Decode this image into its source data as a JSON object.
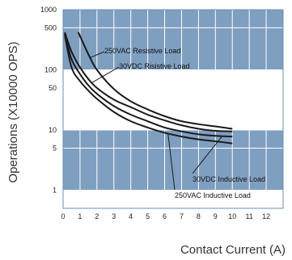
{
  "chart_data": {
    "type": "line",
    "xlabel": "Contact Current (A)",
    "ylabel": "Operations (X10000 OPS)",
    "y_scale": "log",
    "xlim": [
      0,
      13
    ],
    "ylim": [
      0.5,
      1000
    ],
    "x_ticks": [
      0,
      1,
      2,
      3,
      4,
      5,
      6,
      7,
      8,
      9,
      10,
      11,
      12
    ],
    "y_ticks": [
      1,
      5,
      10,
      50,
      100,
      500,
      1000
    ],
    "grid": true,
    "colors": {
      "band_dark": "#7f9fc0",
      "band_light": "#ffffff",
      "line": "#1a1a1a"
    },
    "series": [
      {
        "name": "250VAC Resistive Load",
        "x": [
          0.9,
          1.5,
          2,
          3,
          4,
          5,
          6,
          7,
          8,
          9,
          10
        ],
        "y": [
          420,
          180,
          100,
          48,
          30,
          22,
          17,
          14,
          12.5,
          11.5,
          10.5
        ]
      },
      {
        "name": "30VDC Risistive Load",
        "x": [
          0.1,
          0.5,
          1,
          1.5,
          2,
          3,
          4,
          5,
          6,
          7,
          8,
          9,
          10
        ],
        "y": [
          420,
          200,
          110,
          70,
          50,
          32,
          24,
          18,
          14.5,
          12,
          10.5,
          9.7,
          9.5
        ]
      },
      {
        "name": "30VDC Inductive Load",
        "x": [
          0.1,
          0.5,
          1,
          1.5,
          2,
          3,
          4,
          5,
          6,
          7,
          8,
          9,
          10
        ],
        "y": [
          400,
          150,
          85,
          55,
          40,
          25,
          18,
          14,
          11,
          9.5,
          8.5,
          8,
          7.8
        ]
      },
      {
        "name": "250VAC Inductive Load",
        "x": [
          0.1,
          0.5,
          1,
          1.5,
          2,
          3,
          4,
          5,
          6,
          7,
          8,
          9,
          10
        ],
        "y": [
          380,
          110,
          65,
          45,
          33,
          20,
          14,
          11,
          9,
          7.8,
          7,
          6.5,
          6
        ]
      }
    ],
    "annotations": [
      {
        "text": "250VAC Resistive Load",
        "series": 0
      },
      {
        "text": "30VDC Risistive Load",
        "series": 1
      },
      {
        "text": "30VDC Inductive Load",
        "series": 2
      },
      {
        "text": "250VAC Inductive Load",
        "series": 3
      }
    ]
  }
}
